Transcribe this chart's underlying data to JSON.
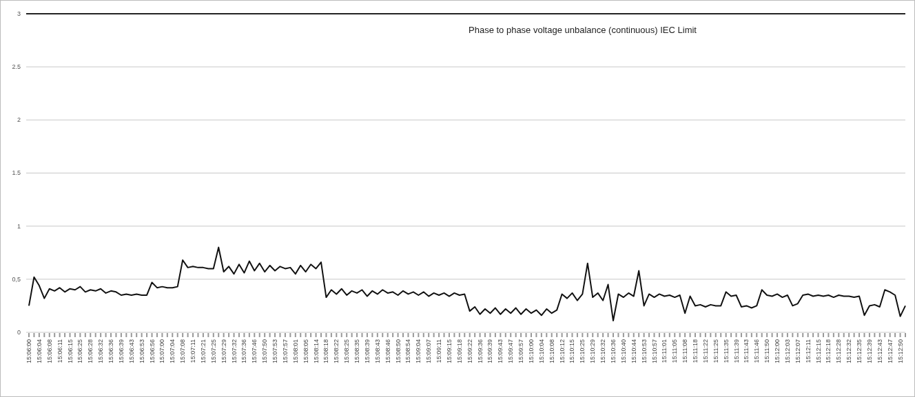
{
  "chart_data": {
    "type": "line",
    "categories": [
      "15:06:00",
      null,
      "15:06:04",
      null,
      "15:06:08",
      null,
      "15:06:11",
      null,
      "15:06:15",
      null,
      "15:06:25",
      null,
      "15:06:28",
      null,
      "15:06:32",
      null,
      "15:06:36",
      null,
      "15:06:39",
      null,
      "15:06:43",
      null,
      "15:06:53",
      null,
      "15:06:56",
      null,
      "15:07:00",
      null,
      "15:07:04",
      null,
      "15:07:08",
      null,
      "15:07:11",
      null,
      "15:07:21",
      null,
      "15:07:25",
      null,
      "15:07:29",
      null,
      "15:07:32",
      null,
      "15:07:36",
      null,
      "15:07:46",
      null,
      "15:07:50",
      null,
      "15:07:53",
      null,
      "15:07:57",
      null,
      "15:08:01",
      null,
      "15:08:05",
      null,
      "15:08:14",
      null,
      "15:08:18",
      null,
      "15:08:22",
      null,
      "15:08:25",
      null,
      "15:08:35",
      null,
      "15:08:39",
      null,
      "15:08:43",
      null,
      "15:08:46",
      null,
      "15:08:50",
      null,
      "15:08:54",
      null,
      "15:09:04",
      null,
      "15:09:07",
      null,
      "15:09:11",
      null,
      "15:09:15",
      null,
      "15:09:18",
      null,
      "15:09:22",
      null,
      "15:09:36",
      null,
      "15:09:39",
      null,
      "15:09:43",
      null,
      "15:09:47",
      null,
      "15:09:57",
      null,
      "15:10:00",
      null,
      "15:10:04",
      null,
      "15:10:08",
      null,
      "15:10:12",
      null,
      "15:10:15",
      null,
      "15:10:25",
      null,
      "15:10:29",
      null,
      "15:10:32",
      null,
      "15:10:36",
      null,
      "15:10:40",
      null,
      "15:10:44",
      null,
      "15:10:53",
      null,
      "15:10:57",
      null,
      "15:11:01",
      null,
      "15:11:05",
      null,
      "15:11:08",
      null,
      "15:11:18",
      null,
      "15:11:22",
      null,
      "15:11:25",
      null,
      "15:11:35",
      null,
      "15:11:39",
      null,
      "15:11:43",
      null,
      "15:11:46",
      null,
      "15:11:50",
      null,
      "15:12:00",
      null,
      "15:12:03",
      null,
      "15:12:07",
      null,
      "15:12:11",
      null,
      "15:12:15",
      null,
      "15:12:18",
      null,
      "15:12:28",
      null,
      "15:12:32",
      null,
      "15:12:35",
      null,
      "15:12:39",
      null,
      "15:12:43",
      null,
      "15:12:47",
      null,
      "15:12:50",
      null
    ],
    "series": [
      {
        "color": "#111111",
        "values": [
          0.25,
          0.52,
          0.44,
          0.32,
          0.41,
          0.39,
          0.42,
          0.38,
          0.41,
          0.4,
          0.43,
          0.38,
          0.4,
          0.39,
          0.41,
          0.37,
          0.39,
          0.38,
          0.35,
          0.36,
          0.35,
          0.36,
          0.35,
          0.35,
          0.47,
          0.42,
          0.43,
          0.42,
          0.42,
          0.43,
          0.68,
          0.61,
          0.62,
          0.61,
          0.61,
          0.6,
          0.6,
          0.8,
          0.57,
          0.62,
          0.55,
          0.64,
          0.56,
          0.67,
          0.58,
          0.65,
          0.57,
          0.63,
          0.58,
          0.62,
          0.6,
          0.61,
          0.55,
          0.63,
          0.57,
          0.64,
          0.6,
          0.66,
          0.33,
          0.4,
          0.36,
          0.41,
          0.35,
          0.39,
          0.37,
          0.4,
          0.34,
          0.39,
          0.36,
          0.4,
          0.37,
          0.38,
          0.35,
          0.39,
          0.36,
          0.38,
          0.35,
          0.38,
          0.34,
          0.37,
          0.35,
          0.37,
          0.34,
          0.37,
          0.35,
          0.36,
          0.2,
          0.24,
          0.17,
          0.22,
          0.18,
          0.23,
          0.17,
          0.22,
          0.18,
          0.23,
          0.17,
          0.22,
          0.18,
          0.21,
          0.16,
          0.22,
          0.18,
          0.21,
          0.36,
          0.32,
          0.37,
          0.3,
          0.36,
          0.65,
          0.33,
          0.37,
          0.3,
          0.45,
          0.11,
          0.36,
          0.33,
          0.37,
          0.34,
          0.58,
          0.25,
          0.36,
          0.33,
          0.36,
          0.34,
          0.35,
          0.33,
          0.35,
          0.18,
          0.34,
          0.25,
          0.26,
          0.24,
          0.26,
          0.25,
          0.25,
          0.38,
          0.34,
          0.35,
          0.24,
          0.25,
          0.23,
          0.25,
          0.4,
          0.35,
          0.34,
          0.36,
          0.33,
          0.35,
          0.25,
          0.27,
          0.35,
          0.36,
          0.34,
          0.35,
          0.34,
          0.35,
          0.33,
          0.35,
          0.34,
          0.34,
          0.33,
          0.34,
          0.16,
          0.25,
          0.26,
          0.24,
          0.4,
          0.38,
          0.35,
          0.15,
          0.25
        ]
      }
    ],
    "ylim": [
      0,
      3
    ],
    "yticks": [
      0,
      {
        "value": 0.5,
        "label": "0,5"
      },
      1,
      1.5,
      2,
      2.5,
      3
    ],
    "grid": "y",
    "ref_lines": [
      {
        "axis": "y",
        "value": 3,
        "label": "Phase to phase voltage unbalance (continuous) IEC Limit",
        "color": "#222222"
      }
    ]
  }
}
